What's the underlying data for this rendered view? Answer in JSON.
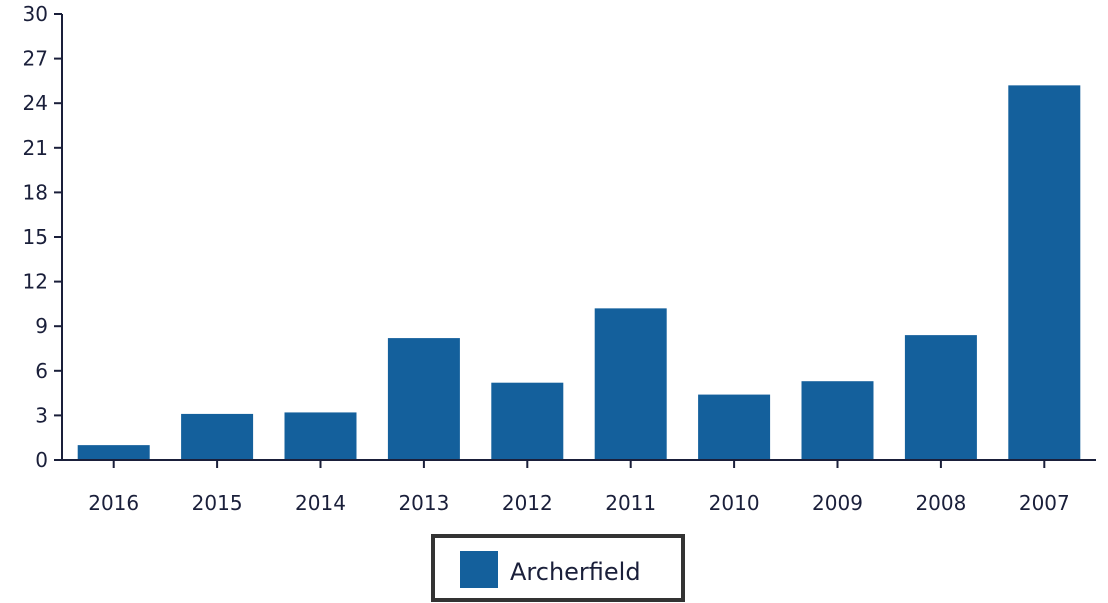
{
  "chart_data": {
    "type": "bar",
    "categories": [
      "2016",
      "2015",
      "2014",
      "2013",
      "2012",
      "2011",
      "2010",
      "2009",
      "2008",
      "2007"
    ],
    "series": [
      {
        "name": "Archerfield",
        "values": [
          1,
          3.1,
          3.2,
          8.2,
          5.2,
          10.2,
          4.4,
          5.3,
          8.4,
          25.2
        ]
      }
    ],
    "ylim": [
      0,
      30
    ],
    "yticks": [
      0,
      3,
      6,
      9,
      12,
      15,
      18,
      21,
      24,
      27,
      30
    ],
    "title": "",
    "xlabel": "",
    "ylabel": "",
    "grid": false,
    "legend": "bottom-center",
    "colors": {
      "bar": "#14609c",
      "axis": "#1a1f3a",
      "legend_border": "#333333"
    }
  }
}
